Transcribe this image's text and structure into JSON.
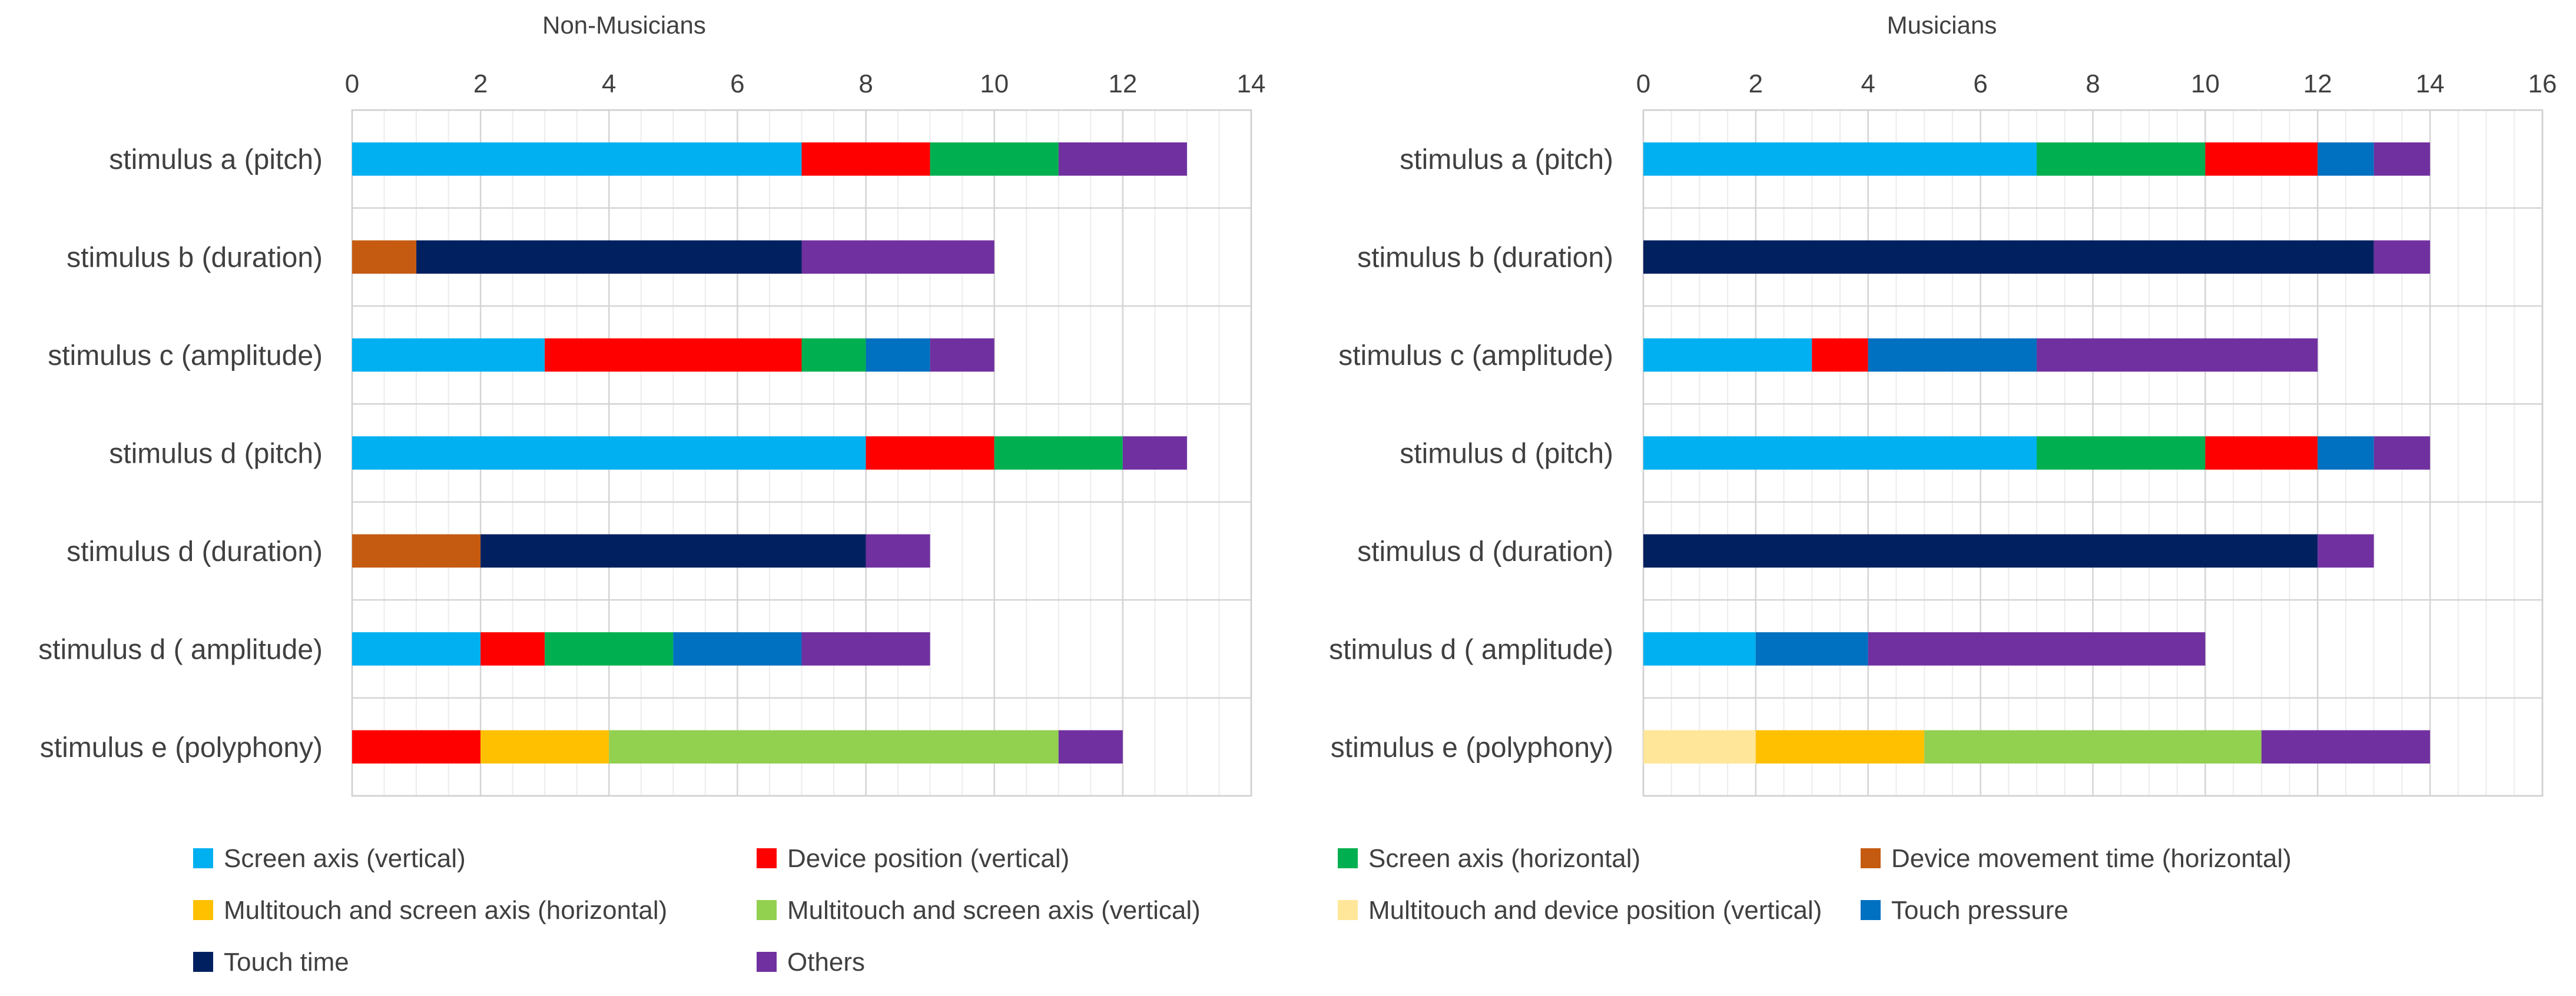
{
  "colors": {
    "screen_axis_vertical": "#00B0F0",
    "device_position_vertical": "#FF0000",
    "screen_axis_horizontal": "#00B050",
    "device_movement_time_horizontal": "#C55A11",
    "multitouch_screen_axis_horizontal": "#FFC000",
    "multitouch_screen_axis_vertical": "#92D050",
    "multitouch_device_position_vertical": "#FFE699",
    "touch_pressure": "#0070C0",
    "touch_time": "#002060",
    "others": "#7030A0"
  },
  "legend": [
    {
      "key": "screen_axis_vertical",
      "label": "Screen axis (vertical)"
    },
    {
      "key": "device_position_vertical",
      "label": "Device position (vertical)"
    },
    {
      "key": "screen_axis_horizontal",
      "label": "Screen axis (horizontal)"
    },
    {
      "key": "device_movement_time_horizontal",
      "label": "Device movement time (horizontal)"
    },
    {
      "key": "multitouch_screen_axis_horizontal",
      "label": "Multitouch and screen axis (horizontal)"
    },
    {
      "key": "multitouch_screen_axis_vertical",
      "label": "Multitouch and screen axis (vertical)"
    },
    {
      "key": "multitouch_device_position_vertical",
      "label": "Multitouch and device position (vertical)"
    },
    {
      "key": "touch_pressure",
      "label": "Touch pressure"
    },
    {
      "key": "touch_time",
      "label": "Touch time"
    },
    {
      "key": "others",
      "label": "Others"
    }
  ],
  "chart_data": [
    {
      "type": "bar",
      "orientation": "horizontal",
      "stacked": true,
      "title": "Non-Musicians",
      "xlim": [
        0,
        14
      ],
      "xticks": [
        0,
        2,
        4,
        6,
        8,
        10,
        12,
        14
      ],
      "axis_position": "top",
      "grid": true,
      "categories": [
        "stimulus a (pitch)",
        "stimulus b (duration)",
        "stimulus c (amplitude)",
        "stimulus d (pitch)",
        "stimulus d (duration)",
        "stimulus d ( amplitude)",
        "stimulus e (polyphony)"
      ],
      "bars": [
        [
          {
            "key": "screen_axis_vertical",
            "value": 7
          },
          {
            "key": "device_position_vertical",
            "value": 2
          },
          {
            "key": "screen_axis_horizontal",
            "value": 2
          },
          {
            "key": "others",
            "value": 2
          }
        ],
        [
          {
            "key": "device_movement_time_horizontal",
            "value": 1
          },
          {
            "key": "touch_time",
            "value": 6
          },
          {
            "key": "others",
            "value": 3
          }
        ],
        [
          {
            "key": "screen_axis_vertical",
            "value": 3
          },
          {
            "key": "device_position_vertical",
            "value": 4
          },
          {
            "key": "screen_axis_horizontal",
            "value": 1
          },
          {
            "key": "touch_pressure",
            "value": 1
          },
          {
            "key": "others",
            "value": 1
          }
        ],
        [
          {
            "key": "screen_axis_vertical",
            "value": 8
          },
          {
            "key": "device_position_vertical",
            "value": 2
          },
          {
            "key": "screen_axis_horizontal",
            "value": 2
          },
          {
            "key": "others",
            "value": 1
          }
        ],
        [
          {
            "key": "device_movement_time_horizontal",
            "value": 2
          },
          {
            "key": "touch_time",
            "value": 6
          },
          {
            "key": "others",
            "value": 1
          }
        ],
        [
          {
            "key": "screen_axis_vertical",
            "value": 2
          },
          {
            "key": "device_position_vertical",
            "value": 1
          },
          {
            "key": "screen_axis_horizontal",
            "value": 2
          },
          {
            "key": "touch_pressure",
            "value": 2
          },
          {
            "key": "others",
            "value": 2
          }
        ],
        [
          {
            "key": "device_position_vertical",
            "value": 2
          },
          {
            "key": "multitouch_screen_axis_horizontal",
            "value": 2
          },
          {
            "key": "multitouch_screen_axis_vertical",
            "value": 7
          },
          {
            "key": "others",
            "value": 1
          }
        ]
      ]
    },
    {
      "type": "bar",
      "orientation": "horizontal",
      "stacked": true,
      "title": "Musicians",
      "xlim": [
        0,
        16
      ],
      "xticks": [
        0,
        2,
        4,
        6,
        8,
        10,
        12,
        14,
        16
      ],
      "axis_position": "top",
      "grid": true,
      "categories": [
        "stimulus a (pitch)",
        "stimulus b (duration)",
        "stimulus c (amplitude)",
        "stimulus d (pitch)",
        "stimulus d (duration)",
        "stimulus d ( amplitude)",
        "stimulus e (polyphony)"
      ],
      "bars": [
        [
          {
            "key": "screen_axis_vertical",
            "value": 7
          },
          {
            "key": "screen_axis_horizontal",
            "value": 3
          },
          {
            "key": "device_position_vertical",
            "value": 2
          },
          {
            "key": "touch_pressure",
            "value": 1
          },
          {
            "key": "others",
            "value": 1
          }
        ],
        [
          {
            "key": "touch_time",
            "value": 13
          },
          {
            "key": "others",
            "value": 1
          }
        ],
        [
          {
            "key": "screen_axis_vertical",
            "value": 3
          },
          {
            "key": "device_position_vertical",
            "value": 1
          },
          {
            "key": "touch_pressure",
            "value": 3
          },
          {
            "key": "others",
            "value": 5
          }
        ],
        [
          {
            "key": "screen_axis_vertical",
            "value": 7
          },
          {
            "key": "screen_axis_horizontal",
            "value": 3
          },
          {
            "key": "device_position_vertical",
            "value": 2
          },
          {
            "key": "touch_pressure",
            "value": 1
          },
          {
            "key": "others",
            "value": 1
          }
        ],
        [
          {
            "key": "touch_time",
            "value": 12
          },
          {
            "key": "others",
            "value": 1
          }
        ],
        [
          {
            "key": "screen_axis_vertical",
            "value": 2
          },
          {
            "key": "touch_pressure",
            "value": 2
          },
          {
            "key": "others",
            "value": 6
          }
        ],
        [
          {
            "key": "multitouch_device_position_vertical",
            "value": 2
          },
          {
            "key": "multitouch_screen_axis_horizontal",
            "value": 3
          },
          {
            "key": "multitouch_screen_axis_vertical",
            "value": 6
          },
          {
            "key": "others",
            "value": 3
          }
        ]
      ]
    }
  ]
}
